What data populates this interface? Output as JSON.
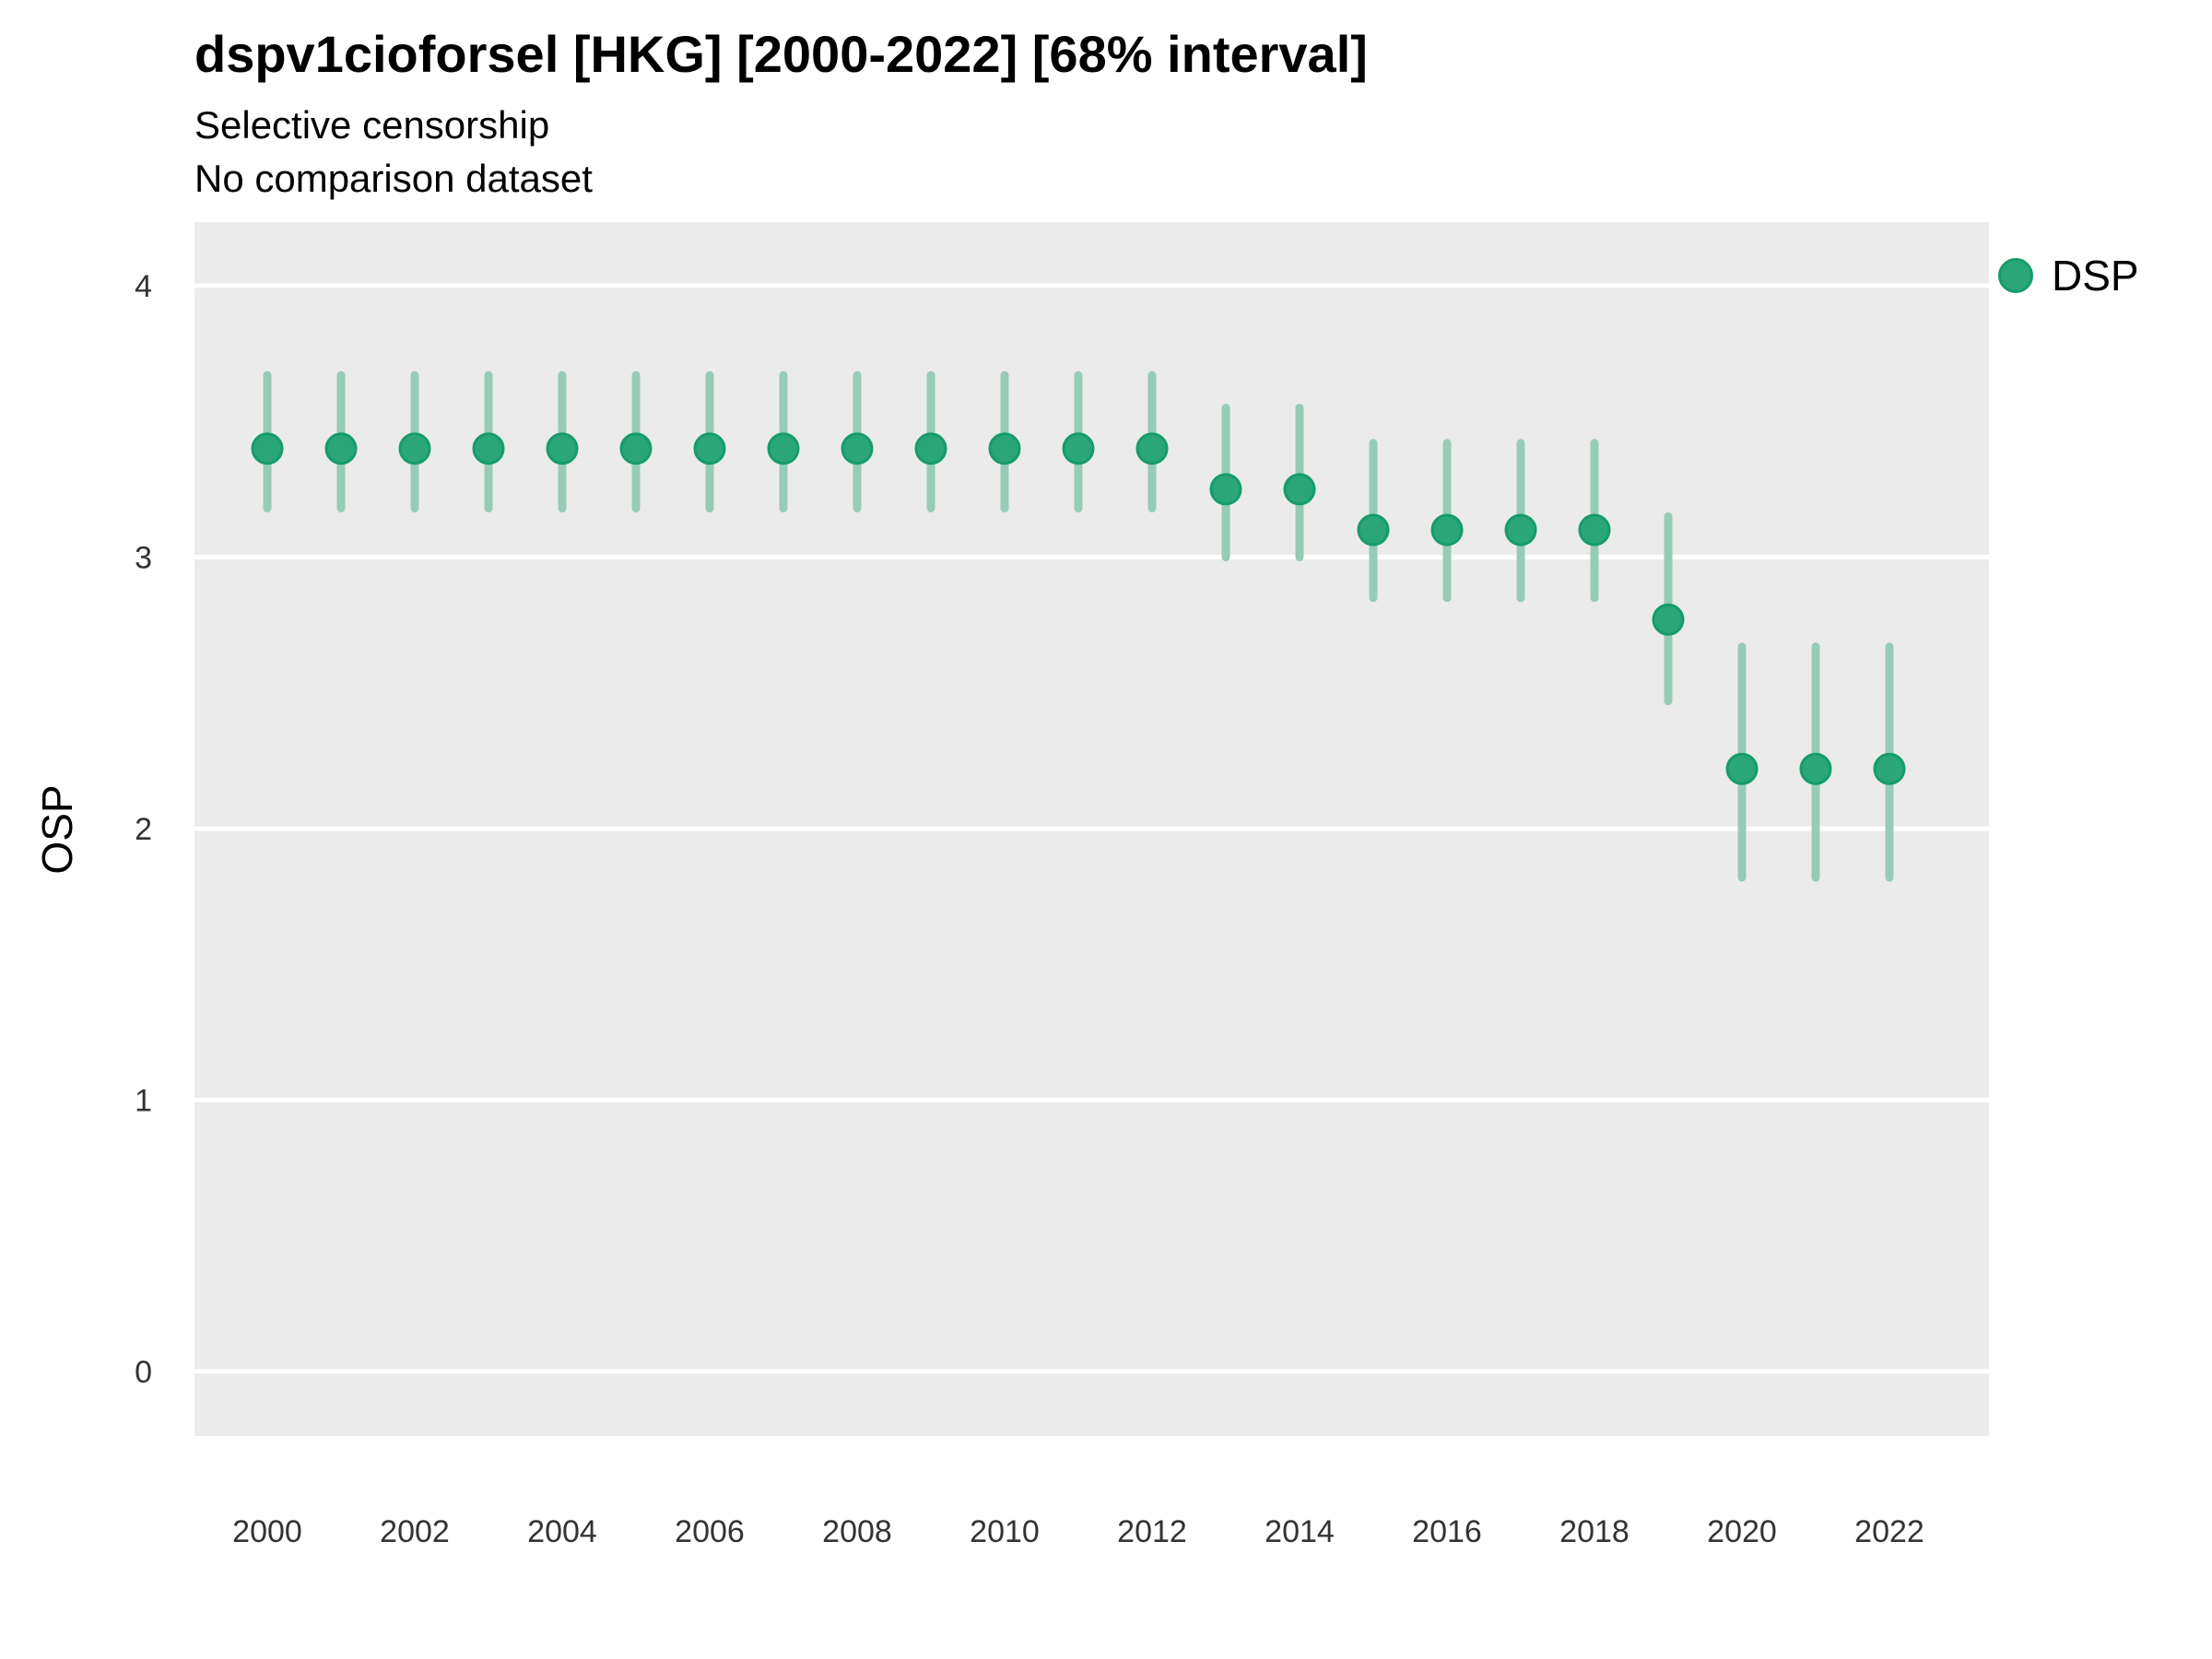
{
  "chart_data": {
    "type": "scatter",
    "title": "dspv1cioforsel [HKG] [2000-2022] [68% interval]",
    "subtitle1": "Selective censorship",
    "subtitle2": "No comparison dataset",
    "ylabel": "OSP",
    "xlabel": "",
    "interval": "68%",
    "x_range": [
      2000,
      2022
    ],
    "ylim": [
      -0.25,
      4.25
    ],
    "y_ticks": [
      0,
      1,
      2,
      3,
      4
    ],
    "x_ticks": [
      2000,
      2002,
      2004,
      2006,
      2008,
      2010,
      2012,
      2014,
      2016,
      2018,
      2020,
      2022
    ],
    "grid": "horizontal-major-only",
    "legend": {
      "position": "right",
      "entries": [
        {
          "label": "DSP",
          "color": "#2aa678"
        }
      ]
    },
    "series": [
      {
        "name": "DSP",
        "x": [
          2000,
          2001,
          2002,
          2003,
          2004,
          2005,
          2006,
          2007,
          2008,
          2009,
          2010,
          2011,
          2012,
          2013,
          2014,
          2015,
          2016,
          2017,
          2018,
          2019,
          2020,
          2021,
          2022
        ],
        "estimate": [
          3.4,
          3.4,
          3.4,
          3.4,
          3.4,
          3.4,
          3.4,
          3.4,
          3.4,
          3.4,
          3.4,
          3.4,
          3.4,
          3.25,
          3.25,
          3.1,
          3.1,
          3.1,
          3.1,
          2.77,
          2.22,
          2.22,
          2.22
        ],
        "lower": [
          3.18,
          3.18,
          3.18,
          3.18,
          3.18,
          3.18,
          3.18,
          3.18,
          3.18,
          3.18,
          3.18,
          3.18,
          3.18,
          3.0,
          3.0,
          2.85,
          2.85,
          2.85,
          2.85,
          2.47,
          1.82,
          1.82,
          1.82
        ],
        "upper": [
          3.67,
          3.67,
          3.67,
          3.67,
          3.67,
          3.67,
          3.67,
          3.67,
          3.67,
          3.67,
          3.67,
          3.67,
          3.67,
          3.55,
          3.55,
          3.42,
          3.42,
          3.42,
          3.42,
          3.15,
          2.67,
          2.67,
          2.67
        ]
      }
    ]
  },
  "colors": {
    "point_fill": "#2aa678",
    "point_stroke": "#159c6a",
    "error_bar": "#96ccb6",
    "panel_bg": "#ebebeb",
    "gridline": "#ffffff",
    "title_text": "#000000",
    "tick_text": "#333333"
  }
}
